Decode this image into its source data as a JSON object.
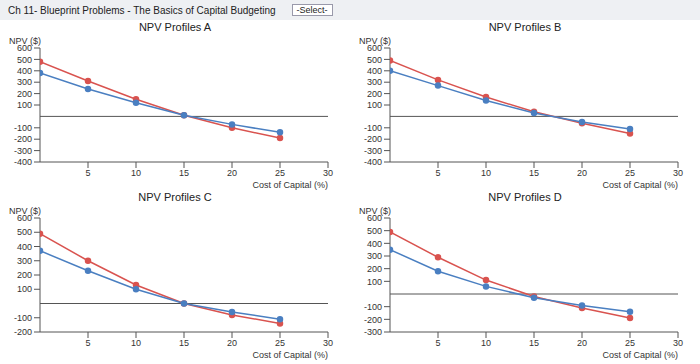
{
  "page_title": "Ch 11- Blueprint Problems - The Basics of Capital Budgeting",
  "select_label": "-Select-",
  "chart_data": [
    {
      "type": "line",
      "title": "NPV Profiles A",
      "y_label": "NPV ($)",
      "x_label": "Cost of Capital (%)",
      "x": [
        0,
        5,
        10,
        15,
        20,
        25
      ],
      "series": [
        {
          "color": "#d9534f",
          "marker": "circle",
          "values": [
            480,
            310,
            150,
            10,
            -100,
            -190
          ]
        },
        {
          "color": "#4a7fc1",
          "marker": "circle",
          "values": [
            380,
            240,
            120,
            10,
            -70,
            -140
          ]
        }
      ],
      "xlim": [
        0,
        30
      ],
      "ylim": [
        -400,
        600
      ],
      "xticks": [
        5,
        10,
        15,
        20,
        25,
        30
      ],
      "yticks": [
        -400,
        -300,
        -200,
        -100,
        100,
        200,
        300,
        400,
        500,
        600
      ],
      "grid": false
    },
    {
      "type": "line",
      "title": "NPV Profiles B",
      "y_label": "NPV ($)",
      "x_label": "Cost of Capital (%)",
      "x": [
        0,
        5,
        10,
        15,
        20,
        25
      ],
      "series": [
        {
          "color": "#d9534f",
          "marker": "circle",
          "values": [
            490,
            320,
            170,
            40,
            -60,
            -150
          ]
        },
        {
          "color": "#4a7fc1",
          "marker": "circle",
          "values": [
            400,
            270,
            140,
            30,
            -50,
            -110
          ]
        }
      ],
      "xlim": [
        0,
        30
      ],
      "ylim": [
        -400,
        600
      ],
      "xticks": [
        5,
        10,
        15,
        20,
        25,
        30
      ],
      "yticks": [
        -400,
        -300,
        -200,
        -100,
        100,
        200,
        300,
        400,
        500,
        600
      ],
      "grid": false
    },
    {
      "type": "line",
      "title": "NPV Profiles C",
      "y_label": "NPV ($)",
      "x_label": "Cost of Capital (%)",
      "x": [
        0,
        5,
        10,
        15,
        20,
        25
      ],
      "series": [
        {
          "color": "#d9534f",
          "marker": "circle",
          "values": [
            490,
            300,
            130,
            0,
            -80,
            -140
          ]
        },
        {
          "color": "#4a7fc1",
          "marker": "circle",
          "values": [
            370,
            230,
            100,
            0,
            -60,
            -110
          ]
        }
      ],
      "xlim": [
        0,
        30
      ],
      "ylim": [
        -200,
        600
      ],
      "xticks": [
        5,
        10,
        15,
        20,
        25,
        30
      ],
      "yticks": [
        -200,
        -100,
        100,
        200,
        300,
        400,
        500,
        600
      ],
      "grid": false
    },
    {
      "type": "line",
      "title": "NPV Profiles D",
      "y_label": "NPV ($)",
      "x_label": "Cost of Capital (%)",
      "x": [
        0,
        5,
        10,
        15,
        20,
        25
      ],
      "series": [
        {
          "color": "#d9534f",
          "marker": "circle",
          "values": [
            490,
            290,
            110,
            -20,
            -110,
            -190
          ]
        },
        {
          "color": "#4a7fc1",
          "marker": "circle",
          "values": [
            350,
            180,
            60,
            -30,
            -90,
            -140
          ]
        }
      ],
      "xlim": [
        0,
        30
      ],
      "ylim": [
        -300,
        600
      ],
      "xticks": [
        5,
        10,
        15,
        20,
        25,
        30
      ],
      "yticks": [
        -300,
        -200,
        -100,
        100,
        200,
        300,
        400,
        500,
        600
      ],
      "grid": false
    }
  ]
}
